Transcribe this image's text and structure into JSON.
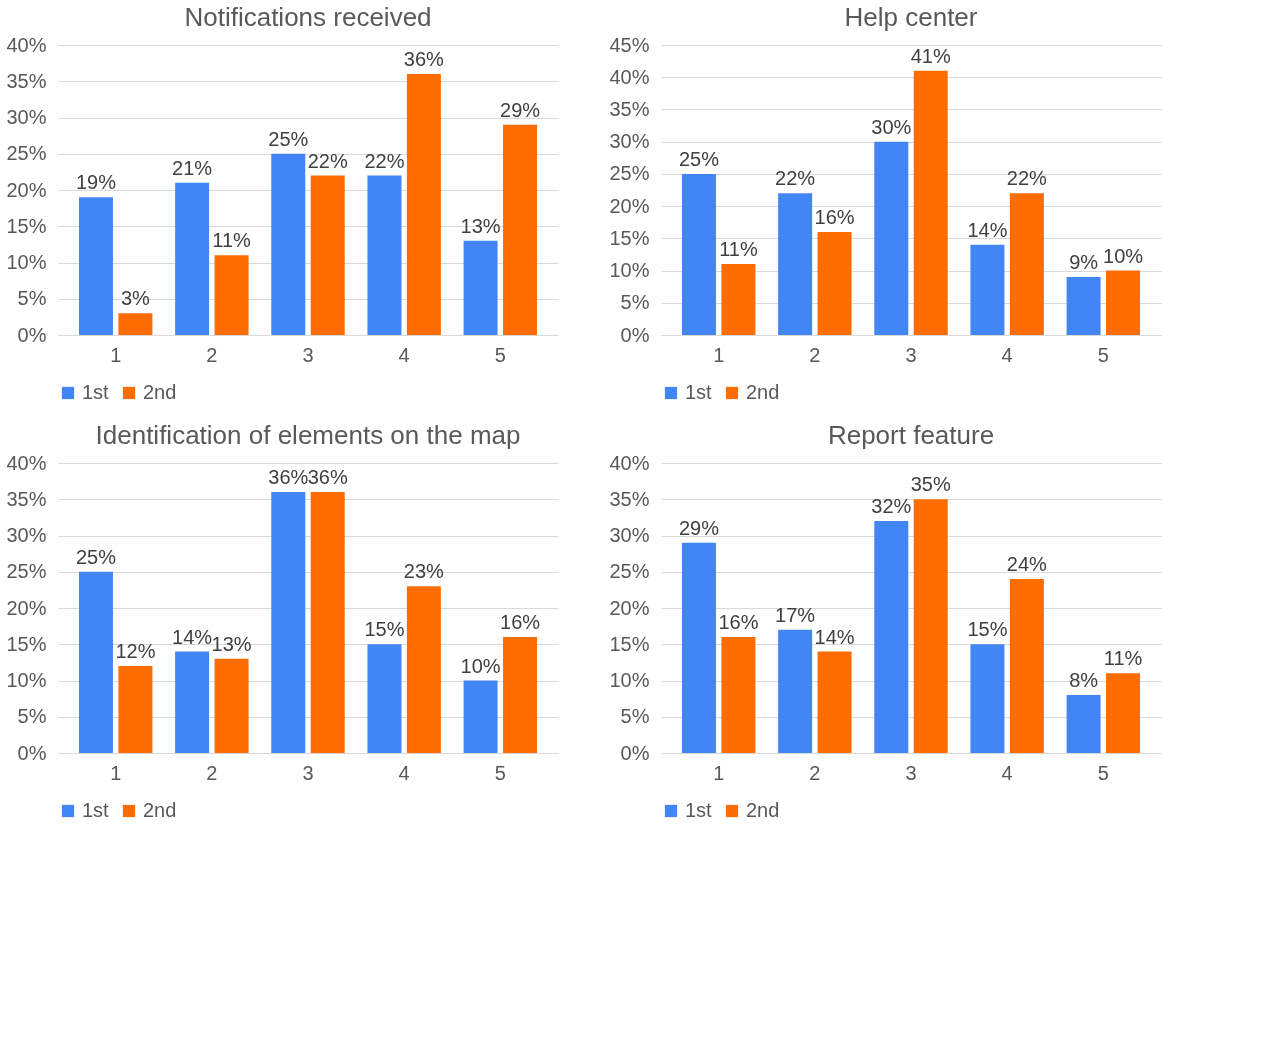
{
  "chart_data": [
    {
      "type": "bar",
      "title": "Notifications received",
      "categories": [
        "1",
        "2",
        "3",
        "4",
        "5"
      ],
      "series": [
        {
          "name": "1st",
          "color": "#4285f4",
          "values": [
            19,
            21,
            25,
            22,
            13
          ],
          "value_labels": [
            "19%",
            "21%",
            "25%",
            "22%",
            "13%"
          ]
        },
        {
          "name": "2nd",
          "color": "#ff6d01",
          "values": [
            3,
            11,
            22,
            36,
            29
          ],
          "value_labels": [
            "3%",
            "11%",
            "22%",
            "36%",
            "29%"
          ]
        }
      ],
      "ylim": [
        0,
        40
      ],
      "yticks": [
        {
          "value": 0,
          "label": "0%"
        },
        {
          "value": 5,
          "label": "5%"
        },
        {
          "value": 10,
          "label": "10%"
        },
        {
          "value": 15,
          "label": "15%"
        },
        {
          "value": 20,
          "label": "20%"
        },
        {
          "value": 25,
          "label": "25%"
        },
        {
          "value": 30,
          "label": "30%"
        },
        {
          "value": 35,
          "label": "35%"
        },
        {
          "value": 40,
          "label": "40%"
        }
      ],
      "grid": "y",
      "legend": "bottom"
    },
    {
      "type": "bar",
      "title": "Help center",
      "categories": [
        "1",
        "2",
        "3",
        "4",
        "5"
      ],
      "series": [
        {
          "name": "1st",
          "color": "#4285f4",
          "values": [
            25,
            22,
            30,
            14,
            9
          ],
          "value_labels": [
            "25%",
            "22%",
            "30%",
            "14%",
            "9%"
          ]
        },
        {
          "name": "2nd",
          "color": "#ff6d01",
          "values": [
            11,
            16,
            41,
            22,
            10
          ],
          "value_labels": [
            "11%",
            "16%",
            "41%",
            "22%",
            "10%"
          ]
        }
      ],
      "ylim": [
        0,
        45
      ],
      "yticks": [
        {
          "value": 0,
          "label": "0%"
        },
        {
          "value": 5,
          "label": "5%"
        },
        {
          "value": 10,
          "label": "10%"
        },
        {
          "value": 15,
          "label": "15%"
        },
        {
          "value": 20,
          "label": "20%"
        },
        {
          "value": 25,
          "label": "25%"
        },
        {
          "value": 30,
          "label": "30%"
        },
        {
          "value": 35,
          "label": "35%"
        },
        {
          "value": 40,
          "label": "40%"
        },
        {
          "value": 45,
          "label": "45%"
        }
      ],
      "grid": "y",
      "legend": "bottom"
    },
    {
      "type": "bar",
      "title": "Identification of elements on the map",
      "categories": [
        "1",
        "2",
        "3",
        "4",
        "5"
      ],
      "series": [
        {
          "name": "1st",
          "color": "#4285f4",
          "values": [
            25,
            14,
            36,
            15,
            10
          ],
          "value_labels": [
            "25%",
            "14%",
            "36%",
            "15%",
            "10%"
          ]
        },
        {
          "name": "2nd",
          "color": "#ff6d01",
          "values": [
            12,
            13,
            36,
            23,
            16
          ],
          "value_labels": [
            "12%",
            "13%",
            "36%",
            "23%",
            "16%"
          ]
        }
      ],
      "ylim": [
        0,
        40
      ],
      "yticks": [
        {
          "value": 0,
          "label": "0%"
        },
        {
          "value": 5,
          "label": "5%"
        },
        {
          "value": 10,
          "label": "10%"
        },
        {
          "value": 15,
          "label": "15%"
        },
        {
          "value": 20,
          "label": "20%"
        },
        {
          "value": 25,
          "label": "25%"
        },
        {
          "value": 30,
          "label": "30%"
        },
        {
          "value": 35,
          "label": "35%"
        },
        {
          "value": 40,
          "label": "40%"
        }
      ],
      "grid": "y",
      "legend": "bottom"
    },
    {
      "type": "bar",
      "title": "Report feature",
      "categories": [
        "1",
        "2",
        "3",
        "4",
        "5"
      ],
      "series": [
        {
          "name": "1st",
          "color": "#4285f4",
          "values": [
            29,
            17,
            32,
            15,
            8
          ],
          "value_labels": [
            "29%",
            "17%",
            "32%",
            "15%",
            "8%"
          ]
        },
        {
          "name": "2nd",
          "color": "#ff6d01",
          "values": [
            16,
            14,
            35,
            24,
            11
          ],
          "value_labels": [
            "16%",
            "14%",
            "35%",
            "24%",
            "11%"
          ]
        }
      ],
      "ylim": [
        0,
        40
      ],
      "yticks": [
        {
          "value": 0,
          "label": "0%"
        },
        {
          "value": 5,
          "label": "5%"
        },
        {
          "value": 10,
          "label": "10%"
        },
        {
          "value": 15,
          "label": "15%"
        },
        {
          "value": 20,
          "label": "20%"
        },
        {
          "value": 25,
          "label": "25%"
        },
        {
          "value": 30,
          "label": "30%"
        },
        {
          "value": 35,
          "label": "35%"
        },
        {
          "value": 40,
          "label": "40%"
        }
      ],
      "grid": "y",
      "legend": "bottom"
    }
  ]
}
